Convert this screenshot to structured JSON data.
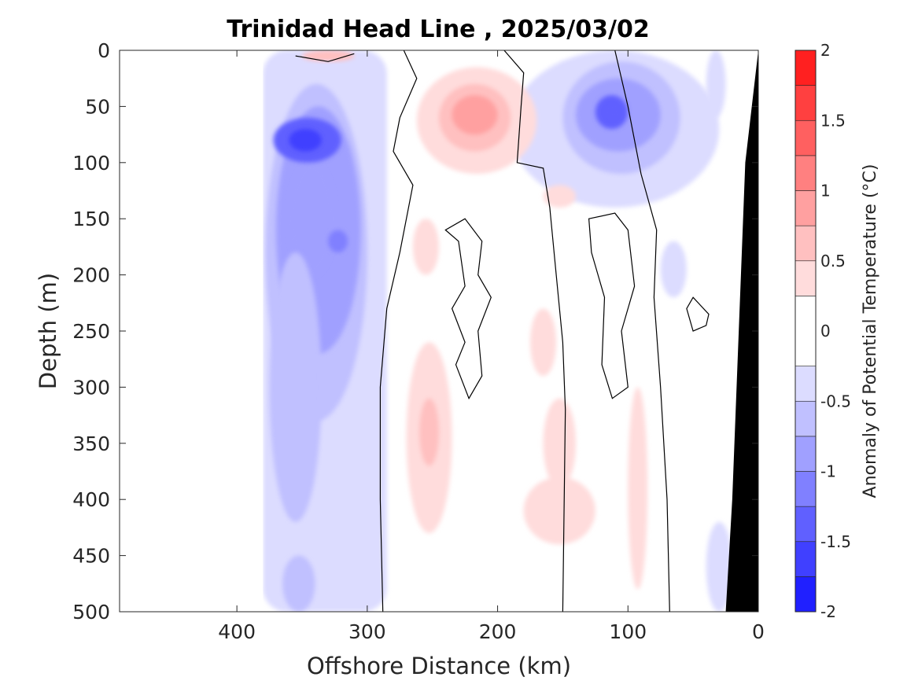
{
  "chart_data": {
    "type": "heatmap",
    "title": "Trinidad Head Line , 2025/03/02",
    "xlabel": "Offshore Distance (km)",
    "ylabel": "Depth (m)",
    "xlim": [
      490,
      0
    ],
    "ylim": [
      0,
      500
    ],
    "xticks": [
      "400",
      "300",
      "200",
      "100",
      "0"
    ],
    "xtick_values": [
      400,
      300,
      200,
      100,
      0
    ],
    "yticks": [
      "0",
      "50",
      "100",
      "150",
      "200",
      "250",
      "300",
      "350",
      "400",
      "450",
      "500"
    ],
    "ytick_values": [
      0,
      50,
      100,
      150,
      200,
      250,
      300,
      350,
      400,
      450,
      500
    ],
    "colorbar": {
      "label": "Anomaly of Potential Temperature (°C)",
      "ticks": [
        "2",
        "1.5",
        "1",
        "0.5",
        "0",
        "-0.5",
        "-1",
        "-1.5",
        "-2"
      ],
      "tick_values": [
        2,
        1.5,
        1,
        0.5,
        0,
        -0.5,
        -1,
        -1.5,
        -2
      ],
      "levels": [
        -2,
        -1.75,
        -1.5,
        -1.25,
        -1,
        -0.75,
        -0.5,
        -0.25,
        0.25,
        0.5,
        0.75,
        1,
        1.25,
        1.5,
        1.75,
        2
      ],
      "colors": [
        "#0000ff",
        "#2020ff",
        "#4040ff",
        "#6060ff",
        "#8080ff",
        "#a0a0ff",
        "#c0c0ff",
        "#dcdcff",
        "#ffffff",
        "#ffdcdc",
        "#ffc0c0",
        "#ffa0a0",
        "#ff8080",
        "#ff6060",
        "#ff4040",
        "#ff2020",
        "#ff0000"
      ]
    },
    "data_coverage_km": [
      380,
      20
    ],
    "zero_contour_color": "#000000",
    "bathymetry_color": "#000000",
    "anomaly_regions": [
      {
        "x": [
          380,
          285
        ],
        "y": [
          0,
          500
        ],
        "value": -0.35
      },
      {
        "x": [
          378,
          300
        ],
        "y": [
          30,
          330
        ],
        "value": -0.65
      },
      {
        "x": [
          370,
          305
        ],
        "y": [
          50,
          270
        ],
        "value": -0.9
      },
      {
        "x": [
          360,
          325
        ],
        "y": [
          100,
          200
        ],
        "value": -1.0
      },
      {
        "x": [
          372,
          320
        ],
        "y": [
          60,
          100
        ],
        "value": -1.4
      },
      {
        "x": [
          360,
          335
        ],
        "y": [
          70,
          90
        ],
        "value": -1.6
      },
      {
        "x": [
          330,
          315
        ],
        "y": [
          160,
          180
        ],
        "value": -1.25
      },
      {
        "x": [
          375,
          335
        ],
        "y": [
          180,
          420
        ],
        "value": -0.6
      },
      {
        "x": [
          365,
          340
        ],
        "y": [
          450,
          500
        ],
        "value": -0.6
      },
      {
        "x": [
          190,
          30
        ],
        "y": [
          0,
          140
        ],
        "value": -0.35
      },
      {
        "x": [
          150,
          60
        ],
        "y": [
          10,
          110
        ],
        "value": -0.6
      },
      {
        "x": [
          140,
          75
        ],
        "y": [
          25,
          90
        ],
        "value": -0.9
      },
      {
        "x": [
          125,
          100
        ],
        "y": [
          40,
          70
        ],
        "value": -1.3
      },
      {
        "x": [
          115,
          105
        ],
        "y": [
          50,
          60
        ],
        "value": -1.5
      },
      {
        "x": [
          40,
          25
        ],
        "y": [
          0,
          60
        ],
        "value": -0.35
      },
      {
        "x": [
          75,
          55
        ],
        "y": [
          170,
          220
        ],
        "value": -0.35
      },
      {
        "x": [
          40,
          20
        ],
        "y": [
          420,
          500
        ],
        "value": -0.35
      },
      {
        "x": [
          350,
          310
        ],
        "y": [
          0,
          10
        ],
        "value": 0.6
      },
      {
        "x": [
          262,
          170
        ],
        "y": [
          15,
          110
        ],
        "value": 0.35
      },
      {
        "x": [
          245,
          190
        ],
        "y": [
          30,
          90
        ],
        "value": 0.6
      },
      {
        "x": [
          235,
          200
        ],
        "y": [
          40,
          75
        ],
        "value": 0.8
      },
      {
        "x": [
          270,
          235
        ],
        "y": [
          260,
          430
        ],
        "value": 0.35
      },
      {
        "x": [
          260,
          245
        ],
        "y": [
          310,
          370
        ],
        "value": 0.55
      },
      {
        "x": [
          165,
          140
        ],
        "y": [
          120,
          140
        ],
        "value": 0.3
      },
      {
        "x": [
          175,
          155
        ],
        "y": [
          230,
          290
        ],
        "value": 0.3
      },
      {
        "x": [
          165,
          140
        ],
        "y": [
          310,
          390
        ],
        "value": 0.3
      },
      {
        "x": [
          180,
          125
        ],
        "y": [
          380,
          440
        ],
        "value": 0.3
      },
      {
        "x": [
          100,
          85
        ],
        "y": [
          300,
          480
        ],
        "value": 0.3
      },
      {
        "x": [
          265,
          245
        ],
        "y": [
          150,
          200
        ],
        "value": 0.3
      }
    ]
  }
}
